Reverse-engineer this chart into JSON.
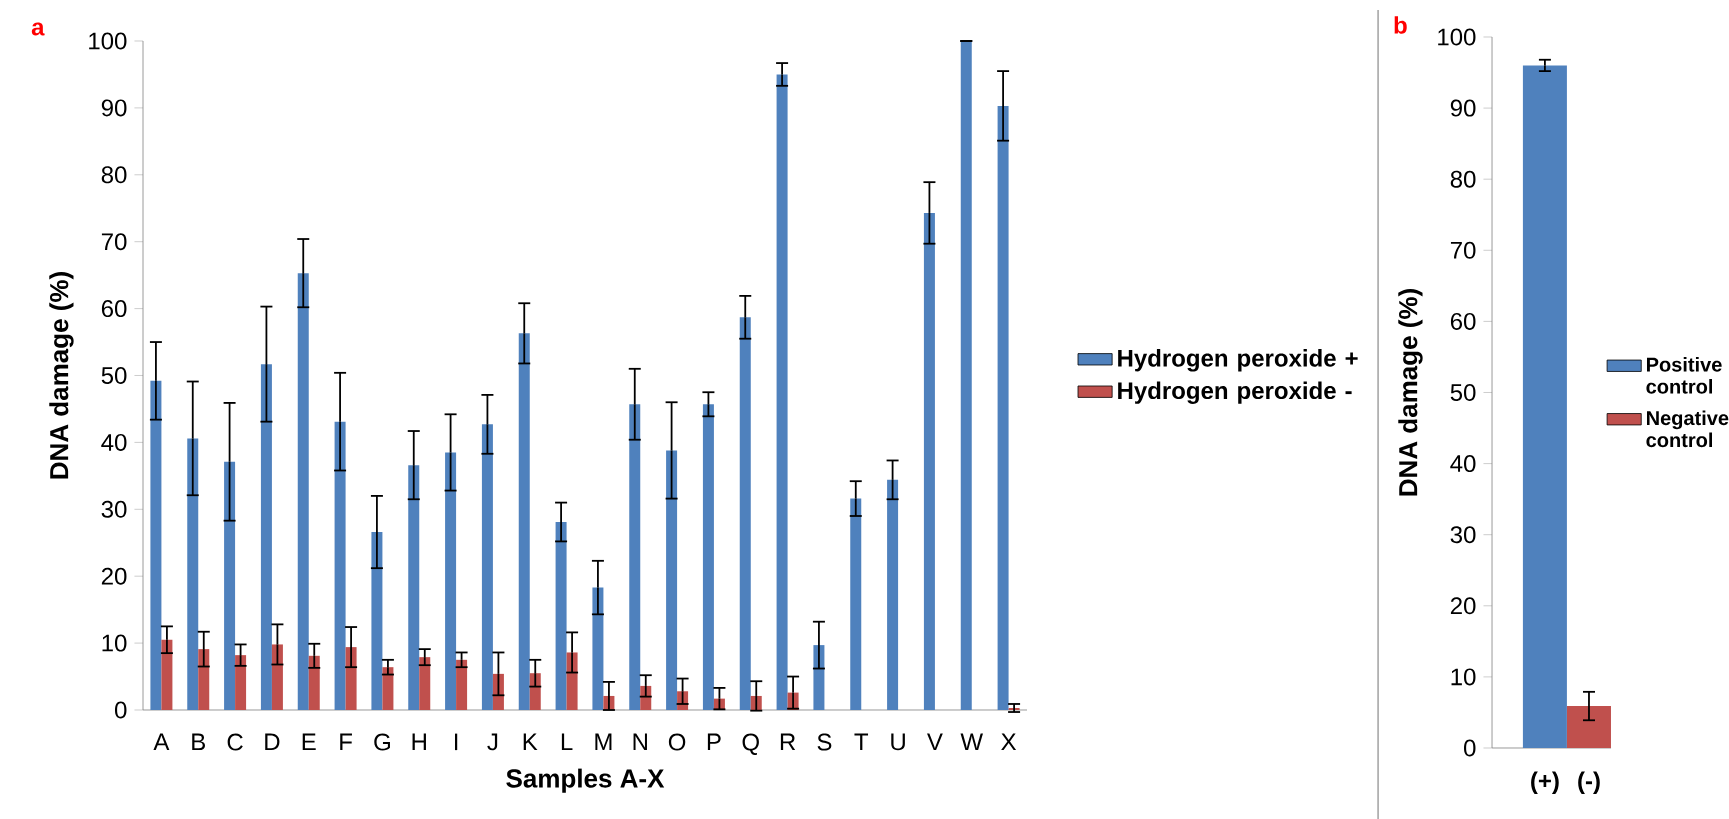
{
  "chart_data": [
    {
      "type": "bar",
      "title": "a",
      "xlabel": "Samples A-X",
      "ylabel": "DNA damage (%)",
      "categories": [
        "A",
        "B",
        "C",
        "D",
        "E",
        "F",
        "G",
        "H",
        "I",
        "J",
        "K",
        "L",
        "M",
        "N",
        "O",
        "P",
        "Q",
        "R",
        "S",
        "T",
        "U",
        "V",
        "W",
        "X"
      ],
      "series": [
        {
          "name": "Hydrogen peroxide +",
          "color": "#4f81bd",
          "values": [
            49.2,
            40.6,
            37.1,
            51.7,
            65.3,
            43.1,
            26.6,
            36.6,
            38.5,
            42.7,
            56.3,
            28.1,
            18.3,
            45.7,
            38.8,
            45.7,
            58.7,
            95.0,
            9.7,
            31.6,
            34.4,
            74.3,
            100,
            90.3
          ],
          "errors": [
            5.8,
            8.5,
            8.8,
            8.6,
            5.1,
            7.3,
            5.4,
            5.1,
            5.7,
            4.4,
            4.5,
            2.9,
            4.0,
            5.3,
            7.2,
            1.8,
            3.2,
            1.7,
            3.5,
            2.6,
            2.9,
            4.6,
            0,
            5.2
          ]
        },
        {
          "name": "Hydrogen peroxide -",
          "color": "#c0504d",
          "values": [
            10.5,
            9.1,
            8.2,
            9.8,
            8.1,
            9.4,
            6.4,
            7.9,
            7.5,
            5.4,
            5.5,
            8.6,
            2.1,
            3.6,
            2.8,
            1.7,
            2.1,
            2.6,
            0,
            0,
            0,
            0,
            0,
            0.3
          ],
          "errors": [
            2.0,
            2.6,
            1.6,
            3.0,
            1.8,
            3.0,
            1.1,
            1.2,
            1.1,
            3.2,
            2.0,
            3.0,
            2.1,
            1.6,
            1.9,
            1.6,
            2.2,
            2.4,
            null,
            null,
            null,
            null,
            null,
            0.6
          ]
        }
      ],
      "ylim": [
        0,
        100
      ],
      "yticks": [
        0,
        10,
        20,
        30,
        40,
        50,
        60,
        70,
        80,
        90,
        100
      ],
      "legend": "right"
    },
    {
      "type": "bar",
      "title": "b",
      "ylabel": "DNA damage (%)",
      "categories": [
        "(+)",
        "(-)"
      ],
      "series": [
        {
          "name": "Positive control",
          "color": "#4f81bd",
          "values": [
            96,
            null
          ],
          "errors": [
            0.8,
            null
          ]
        },
        {
          "name": "Negative control",
          "color": "#c0504d",
          "values": [
            null,
            5.9
          ],
          "errors": [
            null,
            2.0
          ]
        }
      ],
      "ylim": [
        0,
        100
      ],
      "yticks": [
        0,
        10,
        20,
        30,
        40,
        50,
        60,
        70,
        80,
        90,
        100
      ],
      "legend": "right"
    }
  ]
}
